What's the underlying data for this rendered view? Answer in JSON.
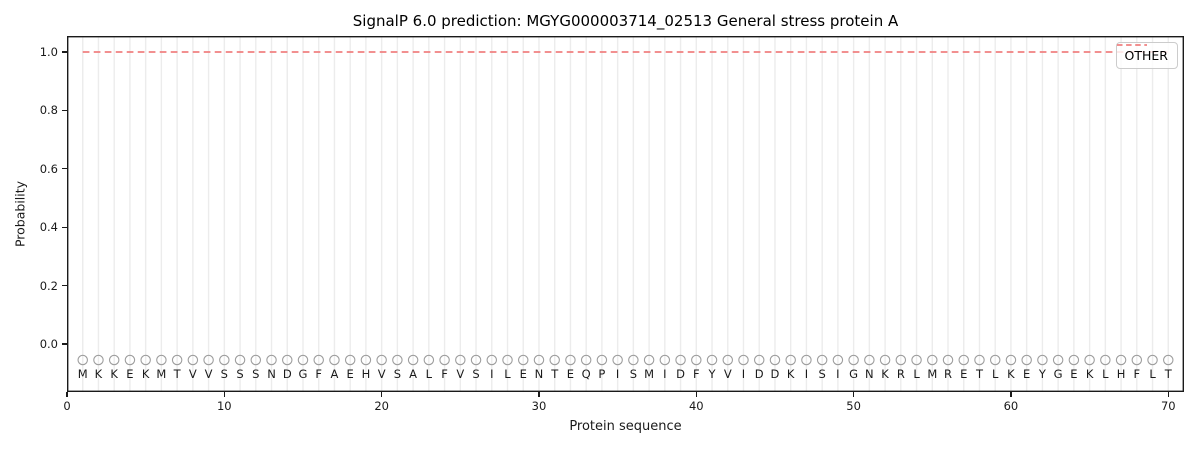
{
  "chart_data": {
    "type": "line",
    "title": "SignalP 6.0 prediction: MGYG000003714_02513 General stress protein A",
    "xlabel": "Protein sequence",
    "ylabel": "Probability",
    "xlim": [
      0,
      71
    ],
    "ylim": [
      -0.16,
      1.06
    ],
    "x_ticks": [
      0,
      10,
      20,
      30,
      40,
      50,
      60,
      70
    ],
    "x_tick_labels": [
      "0",
      "10",
      "20",
      "30",
      "40",
      "50",
      "60",
      "70"
    ],
    "y_ticks": [
      0.0,
      0.2,
      0.4,
      0.6,
      0.8,
      1.0
    ],
    "y_tick_labels": [
      "0.0",
      "0.2",
      "0.4",
      "0.6",
      "0.8",
      "1.0"
    ],
    "grid": {
      "vertical_per_residue": true,
      "color": "#ececec"
    },
    "legend": {
      "position": "upper right",
      "entries": [
        {
          "label": "OTHER",
          "line_style": "dashed",
          "color": "#f08080"
        }
      ]
    },
    "series": [
      {
        "name": "OTHER",
        "line_style": "dashed",
        "color": "#f08080",
        "x_start": 1,
        "x_end": 70,
        "y_constant": 1.0,
        "note": "constant probability 1.0 across all 70 residues"
      }
    ],
    "sequence": "MKKEKMTVVSSSNDGFAEHVSALFVSILENTEQPISMIDFYVIDDKISIGNKRLMRETLKEYGEKLHFLT",
    "sequence_length": 70,
    "residue_markers": {
      "shape": "open-circle",
      "color": "#9e9e9e",
      "y_value": -0.05
    }
  },
  "colors": {
    "frame": "#1a1a1a",
    "grid": "#ececec",
    "dash_line": "#f08080",
    "marker": "#9e9e9e",
    "text": "#1a1a1a"
  }
}
